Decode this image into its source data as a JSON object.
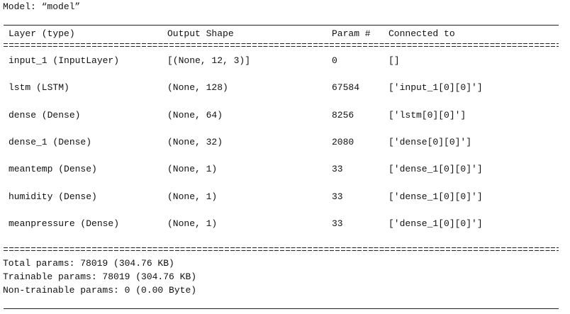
{
  "header": {
    "title": "Model: “model”"
  },
  "table": {
    "columns": [
      "Layer (type)",
      "Output Shape",
      "Param #",
      "Connected to"
    ],
    "rows": [
      [
        "input_1 (InputLayer)",
        "[(None, 12, 3)]",
        0,
        "[]"
      ],
      [
        "lstm (LSTM)",
        "(None, 128)",
        67584,
        "['input_1[0][0]']"
      ],
      [
        "dense (Dense)",
        "(None, 64)",
        8256,
        "['lstm[0][0]']"
      ],
      [
        "dense_1 (Dense)",
        "(None, 32)",
        2080,
        "['dense[0][0]']"
      ],
      [
        "meantemp (Dense)",
        "(None, 1)",
        33,
        "['dense_1[0][0]']"
      ],
      [
        "humidity (Dense)",
        "(None, 1)",
        33,
        "['dense_1[0][0]']"
      ],
      [
        "meanpressure (Dense)",
        "(None, 1)",
        33,
        "['dense_1[0][0]']"
      ]
    ]
  },
  "footer": {
    "lines": [
      "Total params: 78019 (304.76 KB)",
      "Trainable params: 78019 (304.76 KB)",
      "Non-trainable params: 0 (0.00 Byte)"
    ]
  }
}
